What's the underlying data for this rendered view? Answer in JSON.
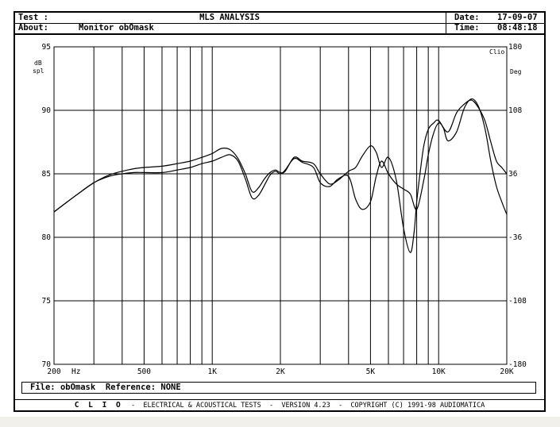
{
  "header": {
    "test_label": "Test :",
    "about_label": "About:",
    "about_value": "Monitor obOmask",
    "title": "MLS ANALYSIS",
    "date_label": "Date:",
    "date_value": "17-09-07",
    "time_label": "Time:",
    "time_value": "08:48:18"
  },
  "file_bar": {
    "file_label": "File:",
    "file_value": "obOmask",
    "reference_label": "Reference:",
    "reference_value": "NONE"
  },
  "footer": {
    "brand": "C L I O",
    "text": "-  ELECTRICAL & ACOUSTICAL TESTS  -  VERSION 4.23  -  COPYRIGHT (C) 1991-98 AUDIOMATICA"
  },
  "chart_data": {
    "type": "line",
    "xscale": "log",
    "xlim": [
      200,
      20000
    ],
    "ylim": [
      70,
      95
    ],
    "y2lim": [
      -180,
      180
    ],
    "ylabel": "dB spl",
    "y2label": "Deg",
    "corner_label": "Clio",
    "x_tick_labels": [
      {
        "value": 200,
        "label": "200"
      },
      {
        "value": 500,
        "label": "500"
      },
      {
        "value": 1000,
        "label": "1K"
      },
      {
        "value": 2000,
        "label": "2K"
      },
      {
        "value": 5000,
        "label": "5K"
      },
      {
        "value": 10000,
        "label": "10K"
      },
      {
        "value": 20000,
        "label": "20K"
      }
    ],
    "x_unit_label": "Hz",
    "x_gridlines": [
      300,
      400,
      500,
      600,
      700,
      800,
      900,
      1000,
      2000,
      3000,
      4000,
      5000,
      6000,
      7000,
      8000,
      9000,
      10000
    ],
    "y_ticks": [
      95,
      90,
      85,
      80,
      75,
      70
    ],
    "y2_ticks": [
      180,
      108,
      36,
      -36,
      -108,
      -180
    ],
    "grid": true,
    "series": [
      {
        "x": [
          200,
          250,
          300,
          350,
          400,
          450,
          500,
          600,
          700,
          800,
          900,
          1000,
          1100,
          1200,
          1300,
          1400,
          1500,
          1600,
          1700,
          1800,
          1900,
          2000,
          2100,
          2300,
          2500,
          2800,
          3000,
          3300,
          3600,
          4000,
          4300,
          4600,
          5000,
          5300,
          5600,
          6000,
          6500,
          7000,
          7500,
          7800,
          8000,
          8300,
          8600,
          9000,
          9500,
          10000,
          11000,
          12000,
          13000,
          14000,
          15000,
          16000,
          17000,
          18000,
          19000,
          20000
        ],
        "y": [
          82.0,
          83.3,
          84.3,
          84.9,
          85.2,
          85.4,
          85.5,
          85.6,
          85.8,
          86.0,
          86.3,
          86.6,
          87.0,
          86.9,
          86.2,
          85.0,
          83.6,
          83.9,
          84.6,
          85.1,
          85.3,
          85.1,
          85.2,
          86.3,
          86.0,
          85.8,
          85.0,
          84.2,
          84.5,
          85.2,
          85.5,
          86.4,
          87.2,
          86.7,
          85.5,
          86.3,
          84.5,
          80.7,
          78.8,
          80.5,
          82.8,
          85.2,
          87.2,
          88.5,
          89.0,
          89.2,
          88.3,
          89.8,
          90.5,
          90.8,
          90.2,
          89.2,
          87.5,
          86.0,
          85.5,
          85.0
        ]
      },
      {
        "x": [
          200,
          250,
          300,
          350,
          400,
          450,
          500,
          600,
          700,
          800,
          900,
          1000,
          1100,
          1200,
          1300,
          1400,
          1500,
          1600,
          1700,
          1800,
          1900,
          2000,
          2100,
          2300,
          2500,
          2800,
          3000,
          3300,
          3600,
          4000,
          4300,
          4600,
          5000,
          5300,
          5600,
          6000,
          6500,
          7000,
          7500,
          8000,
          8600,
          9000,
          9500,
          10000,
          10500,
          11000,
          12000,
          13000,
          14000,
          15000,
          16000,
          17000,
          18000,
          19000,
          20000
        ],
        "y": [
          82.0,
          83.3,
          84.3,
          84.8,
          85.0,
          85.1,
          85.1,
          85.1,
          85.3,
          85.5,
          85.8,
          86.0,
          86.3,
          86.5,
          86.0,
          84.6,
          83.1,
          83.3,
          84.1,
          84.9,
          85.2,
          85.0,
          85.3,
          86.2,
          85.9,
          85.5,
          84.3,
          84.0,
          84.6,
          84.8,
          83.0,
          82.2,
          82.8,
          84.8,
          86.0,
          85.0,
          84.2,
          83.8,
          83.4,
          82.2,
          84.5,
          86.5,
          88.2,
          89.0,
          88.6,
          87.6,
          88.3,
          90.2,
          90.9,
          90.3,
          88.6,
          86.0,
          84.0,
          82.8,
          81.8
        ]
      }
    ]
  }
}
